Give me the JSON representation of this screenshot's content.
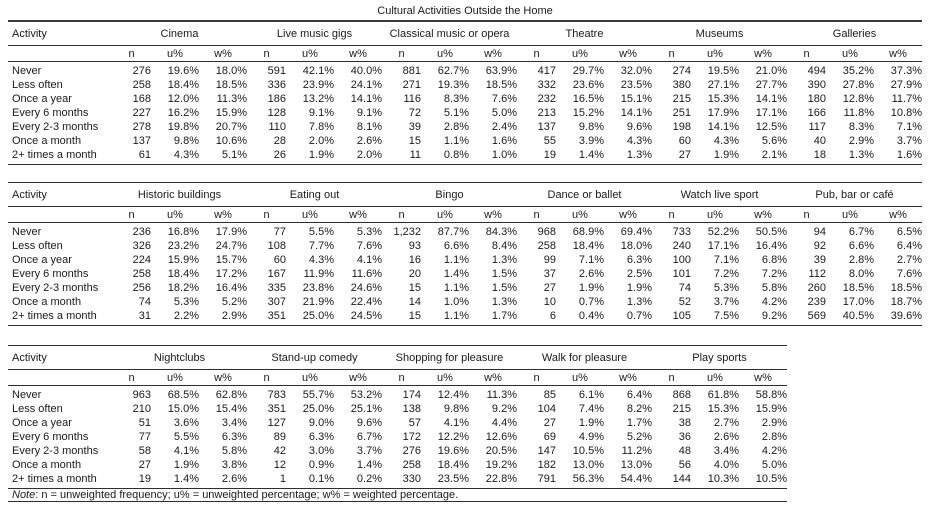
{
  "title": "Cultural Activities Outside the Home",
  "column_headers": {
    "activity": "Activity",
    "stats": [
      "n",
      "u%",
      "w%"
    ]
  },
  "row_labels": [
    "Never",
    "Less often",
    "Once a year",
    "Every 6 months",
    "Every 2-3 months",
    "Once a month",
    "2+ times a month"
  ],
  "note": {
    "label": "Note",
    "rest": ": n = unweighted frequency; u% = unweighted percentage; w% = weighted percentage."
  },
  "colors": {
    "text": "#1a1a1a",
    "rule": "#2e2e2e",
    "background": "#ffffff"
  },
  "tables": [
    {
      "groups": [
        "Cinema",
        "Live music gigs",
        "Classical music or opera",
        "Theatre",
        "Museums",
        "Galleries"
      ],
      "rows": [
        {
          "label": "Never",
          "values": [
            [
              "276",
              "19.6%",
              "18.0%"
            ],
            [
              "591",
              "42.1%",
              "40.0%"
            ],
            [
              "881",
              "62.7%",
              "63.9%"
            ],
            [
              "417",
              "29.7%",
              "32.0%"
            ],
            [
              "274",
              "19.5%",
              "21.0%"
            ],
            [
              "494",
              "35.2%",
              "37.3%"
            ]
          ]
        },
        {
          "label": "Less often",
          "values": [
            [
              "258",
              "18.4%",
              "18.5%"
            ],
            [
              "336",
              "23.9%",
              "24.1%"
            ],
            [
              "271",
              "19.3%",
              "18.5%"
            ],
            [
              "332",
              "23.6%",
              "23.5%"
            ],
            [
              "380",
              "27.1%",
              "27.7%"
            ],
            [
              "390",
              "27.8%",
              "27.9%"
            ]
          ]
        },
        {
          "label": "Once a year",
          "values": [
            [
              "168",
              "12.0%",
              "11.3%"
            ],
            [
              "186",
              "13.2%",
              "14.1%"
            ],
            [
              "116",
              "8.3%",
              "7.6%"
            ],
            [
              "232",
              "16.5%",
              "15.1%"
            ],
            [
              "215",
              "15.3%",
              "14.1%"
            ],
            [
              "180",
              "12.8%",
              "11.7%"
            ]
          ]
        },
        {
          "label": "Every 6 months",
          "values": [
            [
              "227",
              "16.2%",
              "15.9%"
            ],
            [
              "128",
              "9.1%",
              "9.1%"
            ],
            [
              "72",
              "5.1%",
              "5.0%"
            ],
            [
              "213",
              "15.2%",
              "14.1%"
            ],
            [
              "251",
              "17.9%",
              "17.1%"
            ],
            [
              "166",
              "11.8%",
              "10.8%"
            ]
          ]
        },
        {
          "label": "Every 2-3 months",
          "values": [
            [
              "278",
              "19.8%",
              "20.7%"
            ],
            [
              "110",
              "7.8%",
              "8.1%"
            ],
            [
              "39",
              "2.8%",
              "2.4%"
            ],
            [
              "137",
              "9.8%",
              "9.6%"
            ],
            [
              "198",
              "14.1%",
              "12.5%"
            ],
            [
              "117",
              "8.3%",
              "7.1%"
            ]
          ]
        },
        {
          "label": "Once a month",
          "values": [
            [
              "137",
              "9.8%",
              "10.6%"
            ],
            [
              "28",
              "2.0%",
              "2.6%"
            ],
            [
              "15",
              "1.1%",
              "1.6%"
            ],
            [
              "55",
              "3.9%",
              "4.3%"
            ],
            [
              "60",
              "4.3%",
              "5.6%"
            ],
            [
              "40",
              "2.9%",
              "3.7%"
            ]
          ]
        },
        {
          "label": "2+ times a month",
          "values": [
            [
              "61",
              "4.3%",
              "5.1%"
            ],
            [
              "26",
              "1.9%",
              "2.0%"
            ],
            [
              "11",
              "0.8%",
              "1.0%"
            ],
            [
              "19",
              "1.4%",
              "1.3%"
            ],
            [
              "27",
              "1.9%",
              "2.1%"
            ],
            [
              "18",
              "1.3%",
              "1.6%"
            ]
          ]
        }
      ]
    },
    {
      "groups": [
        "Historic buildings",
        "Eating out",
        "Bingo",
        "Dance or ballet",
        "Watch live sport",
        "Pub, bar or café"
      ],
      "rows": [
        {
          "label": "Never",
          "values": [
            [
              "236",
              "16.8%",
              "17.9%"
            ],
            [
              "77",
              "5.5%",
              "5.3%"
            ],
            [
              "1,232",
              "87.7%",
              "84.3%"
            ],
            [
              "968",
              "68.9%",
              "69.4%"
            ],
            [
              "733",
              "52.2%",
              "50.5%"
            ],
            [
              "94",
              "6.7%",
              "6.5%"
            ]
          ]
        },
        {
          "label": "Less often",
          "values": [
            [
              "326",
              "23.2%",
              "24.7%"
            ],
            [
              "108",
              "7.7%",
              "7.6%"
            ],
            [
              "93",
              "6.6%",
              "8.4%"
            ],
            [
              "258",
              "18.4%",
              "18.0%"
            ],
            [
              "240",
              "17.1%",
              "16.4%"
            ],
            [
              "92",
              "6.6%",
              "6.4%"
            ]
          ]
        },
        {
          "label": "Once a year",
          "values": [
            [
              "224",
              "15.9%",
              "15.7%"
            ],
            [
              "60",
              "4.3%",
              "4.1%"
            ],
            [
              "16",
              "1.1%",
              "1.3%"
            ],
            [
              "99",
              "7.1%",
              "6.3%"
            ],
            [
              "100",
              "7.1%",
              "6.8%"
            ],
            [
              "39",
              "2.8%",
              "2.7%"
            ]
          ]
        },
        {
          "label": "Every 6 months",
          "values": [
            [
              "258",
              "18.4%",
              "17.2%"
            ],
            [
              "167",
              "11.9%",
              "11.6%"
            ],
            [
              "20",
              "1.4%",
              "1.5%"
            ],
            [
              "37",
              "2.6%",
              "2.5%"
            ],
            [
              "101",
              "7.2%",
              "7.2%"
            ],
            [
              "112",
              "8.0%",
              "7.6%"
            ]
          ]
        },
        {
          "label": "Every 2-3 months",
          "values": [
            [
              "256",
              "18.2%",
              "16.4%"
            ],
            [
              "335",
              "23.8%",
              "24.6%"
            ],
            [
              "15",
              "1.1%",
              "1.5%"
            ],
            [
              "27",
              "1.9%",
              "1.9%"
            ],
            [
              "74",
              "5.3%",
              "5.8%"
            ],
            [
              "260",
              "18.5%",
              "18.5%"
            ]
          ]
        },
        {
          "label": "Once a month",
          "values": [
            [
              "74",
              "5.3%",
              "5.2%"
            ],
            [
              "307",
              "21.9%",
              "22.4%"
            ],
            [
              "14",
              "1.0%",
              "1.3%"
            ],
            [
              "10",
              "0.7%",
              "1.3%"
            ],
            [
              "52",
              "3.7%",
              "4.2%"
            ],
            [
              "239",
              "17.0%",
              "18.7%"
            ]
          ]
        },
        {
          "label": "2+ times a month",
          "values": [
            [
              "31",
              "2.2%",
              "2.9%"
            ],
            [
              "351",
              "25.0%",
              "24.5%"
            ],
            [
              "15",
              "1.1%",
              "1.7%"
            ],
            [
              "6",
              "0.4%",
              "0.7%"
            ],
            [
              "105",
              "7.5%",
              "9.2%"
            ],
            [
              "569",
              "40.5%",
              "39.6%"
            ]
          ]
        }
      ]
    },
    {
      "groups": [
        "Nightclubs",
        "Stand-up comedy",
        "Shopping for pleasure",
        "Walk for pleasure",
        "Play sports"
      ],
      "rows": [
        {
          "label": "Never",
          "values": [
            [
              "963",
              "68.5%",
              "62.8%"
            ],
            [
              "783",
              "55.7%",
              "53.2%"
            ],
            [
              "174",
              "12.4%",
              "11.3%"
            ],
            [
              "85",
              "6.1%",
              "6.4%"
            ],
            [
              "868",
              "61.8%",
              "58.8%"
            ]
          ]
        },
        {
          "label": "Less often",
          "values": [
            [
              "210",
              "15.0%",
              "15.4%"
            ],
            [
              "351",
              "25.0%",
              "25.1%"
            ],
            [
              "138",
              "9.8%",
              "9.2%"
            ],
            [
              "104",
              "7.4%",
              "8.2%"
            ],
            [
              "215",
              "15.3%",
              "15.9%"
            ]
          ]
        },
        {
          "label": "Once a year",
          "values": [
            [
              "51",
              "3.6%",
              "3.4%"
            ],
            [
              "127",
              "9.0%",
              "9.6%"
            ],
            [
              "57",
              "4.1%",
              "4.4%"
            ],
            [
              "27",
              "1.9%",
              "1.7%"
            ],
            [
              "38",
              "2.7%",
              "2.9%"
            ]
          ]
        },
        {
          "label": "Every 6 months",
          "values": [
            [
              "77",
              "5.5%",
              "6.3%"
            ],
            [
              "89",
              "6.3%",
              "6.7%"
            ],
            [
              "172",
              "12.2%",
              "12.6%"
            ],
            [
              "69",
              "4.9%",
              "5.2%"
            ],
            [
              "36",
              "2.6%",
              "2.8%"
            ]
          ]
        },
        {
          "label": "Every 2-3 months",
          "values": [
            [
              "58",
              "4.1%",
              "5.8%"
            ],
            [
              "42",
              "3.0%",
              "3.7%"
            ],
            [
              "276",
              "19.6%",
              "20.5%"
            ],
            [
              "147",
              "10.5%",
              "11.2%"
            ],
            [
              "48",
              "3.4%",
              "4.2%"
            ]
          ]
        },
        {
          "label": "Once a month",
          "values": [
            [
              "27",
              "1.9%",
              "3.8%"
            ],
            [
              "12",
              "0.9%",
              "1.4%"
            ],
            [
              "258",
              "18.4%",
              "19.2%"
            ],
            [
              "182",
              "13.0%",
              "13.0%"
            ],
            [
              "56",
              "4.0%",
              "5.0%"
            ]
          ]
        },
        {
          "label": "2+ times a month",
          "values": [
            [
              "19",
              "1.4%",
              "2.6%"
            ],
            [
              "1",
              "0.1%",
              "0.2%"
            ],
            [
              "330",
              "23.5%",
              "22.8%"
            ],
            [
              "791",
              "56.3%",
              "54.4%"
            ],
            [
              "144",
              "10.3%",
              "10.5%"
            ]
          ]
        }
      ]
    }
  ]
}
